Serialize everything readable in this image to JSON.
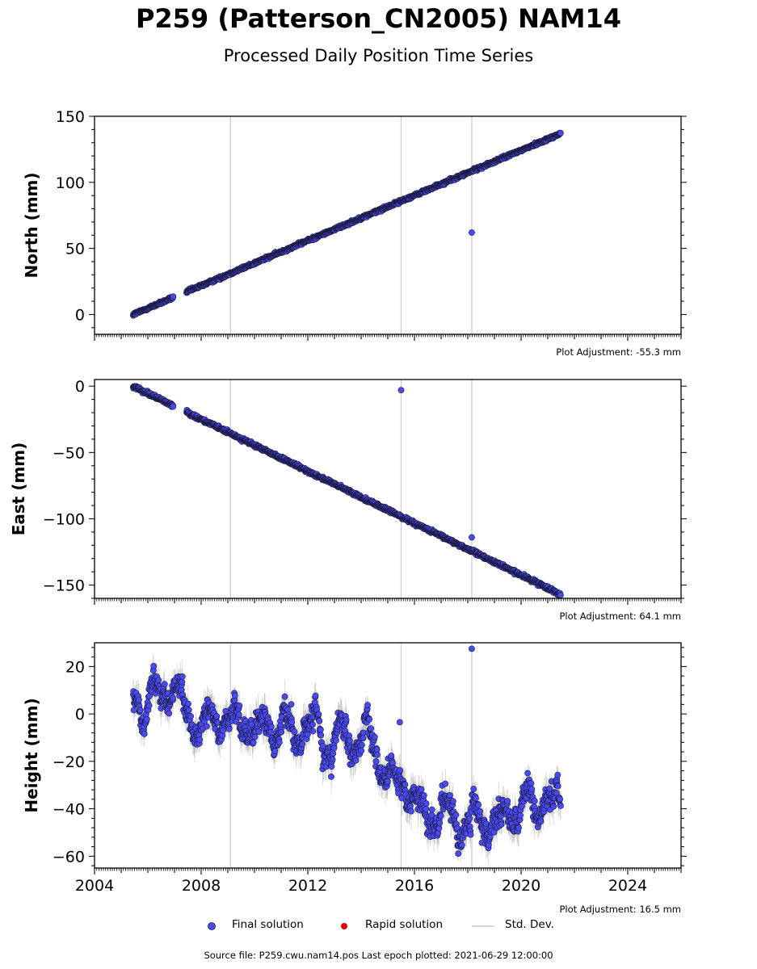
{
  "title": "P259 (Patterson_CN2005) NAM14",
  "subtitle": "Processed Daily Position Time Series",
  "source_line": "Source file: P259.cwu.nam14.pos  Last epoch plotted: 2021-06-29 12:00:00",
  "legend": {
    "final": "Final solution",
    "rapid": "Rapid solution",
    "stddev": "Std. Dev."
  },
  "colors": {
    "final": "#4a4af4",
    "rapid": "#e00000",
    "stddev": "#aaaaaa",
    "marker_edge": "#1a1a3a"
  },
  "chart_data": [
    {
      "type": "scatter",
      "ylabel": "North (mm)",
      "ylim": [
        -15,
        150
      ],
      "yticks": [
        0,
        50,
        100,
        150
      ],
      "ytick_labels": [
        "0",
        "50",
        "100",
        "150"
      ],
      "adjustment": "Plot Adjustment: -55.3 mm",
      "xlim": [
        2004,
        2026
      ],
      "vlines": [
        2009.1,
        2015.5,
        2018.15
      ],
      "start": {
        "x": 2005.45,
        "y": 0
      },
      "end": {
        "x": 2021.49,
        "y": 137
      },
      "gap": [
        2006.95,
        2007.45
      ],
      "noise": 0.8,
      "outliers": [
        {
          "x": 2018.15,
          "y": 62
        }
      ]
    },
    {
      "type": "scatter",
      "ylabel": "East (mm)",
      "ylim": [
        -160,
        5
      ],
      "yticks": [
        -150,
        -100,
        -50,
        0
      ],
      "ytick_labels": [
        "−150",
        "−100",
        "−50",
        "0"
      ],
      "adjustment": "Plot Adjustment: 64.1 mm",
      "xlim": [
        2004,
        2026
      ],
      "vlines": [
        2009.1,
        2015.5,
        2018.15
      ],
      "start": {
        "x": 2005.45,
        "y": 0
      },
      "end": {
        "x": 2021.49,
        "y": -157
      },
      "gap": [
        2006.95,
        2007.45
      ],
      "noise": 0.9,
      "outliers": [
        {
          "x": 2015.5,
          "y": -3
        },
        {
          "x": 2018.15,
          "y": -114
        }
      ]
    },
    {
      "type": "scatter",
      "ylabel": "Height (mm)",
      "ylim": [
        -65,
        30
      ],
      "yticks": [
        -60,
        -40,
        -20,
        0,
        20
      ],
      "ytick_labels": [
        "−60",
        "−40",
        "−20",
        "0",
        "20"
      ],
      "adjustment": "Plot Adjustment: 16.5 mm",
      "xlim": [
        2004,
        2026
      ],
      "xticks": [
        2004,
        2008,
        2012,
        2016,
        2020,
        2024
      ],
      "xtick_labels": [
        "2004",
        "2008",
        "2012",
        "2016",
        "2020",
        "2024"
      ],
      "vlines": [
        2009.1,
        2015.5,
        2018.15
      ],
      "trend": [
        [
          2005.45,
          6
        ],
        [
          2007.0,
          8
        ],
        [
          2007.5,
          -2
        ],
        [
          2009.0,
          -1
        ],
        [
          2011.0,
          -6
        ],
        [
          2013.0,
          -8
        ],
        [
          2014.3,
          -10
        ],
        [
          2015.5,
          -32
        ],
        [
          2016.5,
          -42
        ],
        [
          2018.0,
          -44
        ],
        [
          2021.49,
          -38
        ]
      ],
      "noise": 7,
      "outliers": [
        {
          "x": 2018.15,
          "y": 27.5
        },
        {
          "x": 2015.45,
          "y": -3.5
        }
      ]
    }
  ]
}
